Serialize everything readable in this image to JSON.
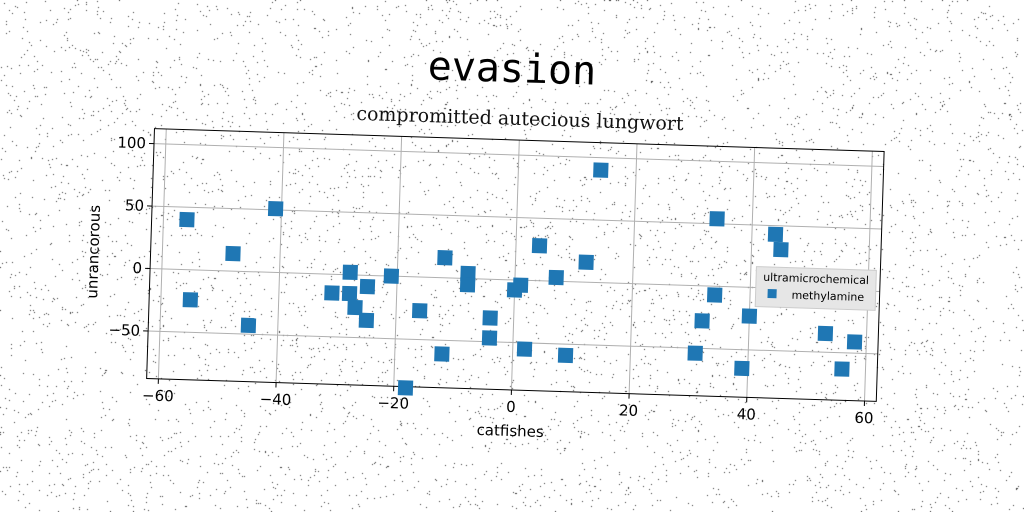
{
  "title": "evasion",
  "chart_data": {
    "type": "scatter",
    "title": "compromitted autecious lungwort",
    "xlabel": "catfishes",
    "ylabel": "unrancorous",
    "xlim": [
      -62,
      62
    ],
    "ylim": [
      -88,
      112
    ],
    "xticks": [
      "−60",
      "−40",
      "−20",
      "0",
      "20",
      "40",
      "60"
    ],
    "xtick_values": [
      -60,
      -40,
      -20,
      0,
      20,
      40,
      60
    ],
    "yticks": [
      "100",
      "50",
      "0",
      "−50"
    ],
    "ytick_values": [
      100,
      50,
      0,
      -50
    ],
    "grid": true,
    "legend": {
      "title": "ultramicrochemical",
      "placement": "right"
    },
    "series": [
      {
        "name": "methylamine",
        "color": "#1f77b4",
        "marker": "square",
        "points": [
          [
            -56,
            40
          ],
          [
            -41,
            51
          ],
          [
            -48,
            14
          ],
          [
            -55,
            -24
          ],
          [
            -45,
            -43
          ],
          [
            -28,
            2
          ],
          [
            -31,
            -15
          ],
          [
            -28,
            -15
          ],
          [
            -25,
            -9
          ],
          [
            -27,
            -26
          ],
          [
            -25,
            -36
          ],
          [
            -21,
            0
          ],
          [
            -16,
            -27
          ],
          [
            -12,
            16
          ],
          [
            -12,
            -61
          ],
          [
            -18,
            -89
          ],
          [
            -8,
            4
          ],
          [
            -8,
            -5
          ],
          [
            -4,
            -31
          ],
          [
            -4,
            -47
          ],
          [
            0,
            -8
          ],
          [
            1,
            -4
          ],
          [
            2,
            -55
          ],
          [
            4,
            28
          ],
          [
            7,
            3
          ],
          [
            9,
            -59
          ],
          [
            12,
            16
          ],
          [
            14,
            90
          ],
          [
            31,
            -54
          ],
          [
            32,
            -28
          ],
          [
            34,
            54
          ],
          [
            34,
            -7
          ],
          [
            39,
            -65
          ],
          [
            40,
            -23
          ],
          [
            44,
            43
          ],
          [
            45,
            31
          ],
          [
            53,
            -35
          ],
          [
            56,
            -63
          ],
          [
            58,
            -41
          ]
        ]
      }
    ]
  }
}
